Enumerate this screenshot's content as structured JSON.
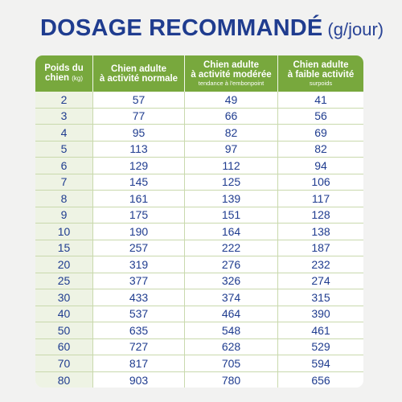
{
  "title": {
    "main": "DOSAGE RECOMMANDÉ",
    "unit": "(g/jour)"
  },
  "table": {
    "headers": [
      {
        "line1": "Poids du",
        "line2": "chien",
        "unit": "(kg)",
        "sub": ""
      },
      {
        "line1": "Chien adulte",
        "line2": "à activité normale",
        "unit": "",
        "sub": ""
      },
      {
        "line1": "Chien adulte",
        "line2": "à activité modérée",
        "unit": "",
        "sub": "tendance à l'embonpoint"
      },
      {
        "line1": "Chien adulte",
        "line2": "à faible activité",
        "unit": "",
        "sub": "surpoids"
      }
    ],
    "rows": [
      [
        "2",
        "57",
        "49",
        "41"
      ],
      [
        "3",
        "77",
        "66",
        "56"
      ],
      [
        "4",
        "95",
        "82",
        "69"
      ],
      [
        "5",
        "113",
        "97",
        "82"
      ],
      [
        "6",
        "129",
        "112",
        "94"
      ],
      [
        "7",
        "145",
        "125",
        "106"
      ],
      [
        "8",
        "161",
        "139",
        "117"
      ],
      [
        "9",
        "175",
        "151",
        "128"
      ],
      [
        "10",
        "190",
        "164",
        "138"
      ],
      [
        "15",
        "257",
        "222",
        "187"
      ],
      [
        "20",
        "319",
        "276",
        "232"
      ],
      [
        "25",
        "377",
        "326",
        "274"
      ],
      [
        "30",
        "433",
        "374",
        "315"
      ],
      [
        "40",
        "537",
        "464",
        "390"
      ],
      [
        "50",
        "635",
        "548",
        "461"
      ],
      [
        "60",
        "727",
        "628",
        "529"
      ],
      [
        "70",
        "817",
        "705",
        "594"
      ],
      [
        "80",
        "903",
        "780",
        "656"
      ]
    ]
  },
  "colors": {
    "title": "#1f3c8f",
    "header_bg": "#78a83d",
    "weight_col_bg": "#eef3e4",
    "grid": "#c9d9ad",
    "background": "#f2f2f1"
  }
}
